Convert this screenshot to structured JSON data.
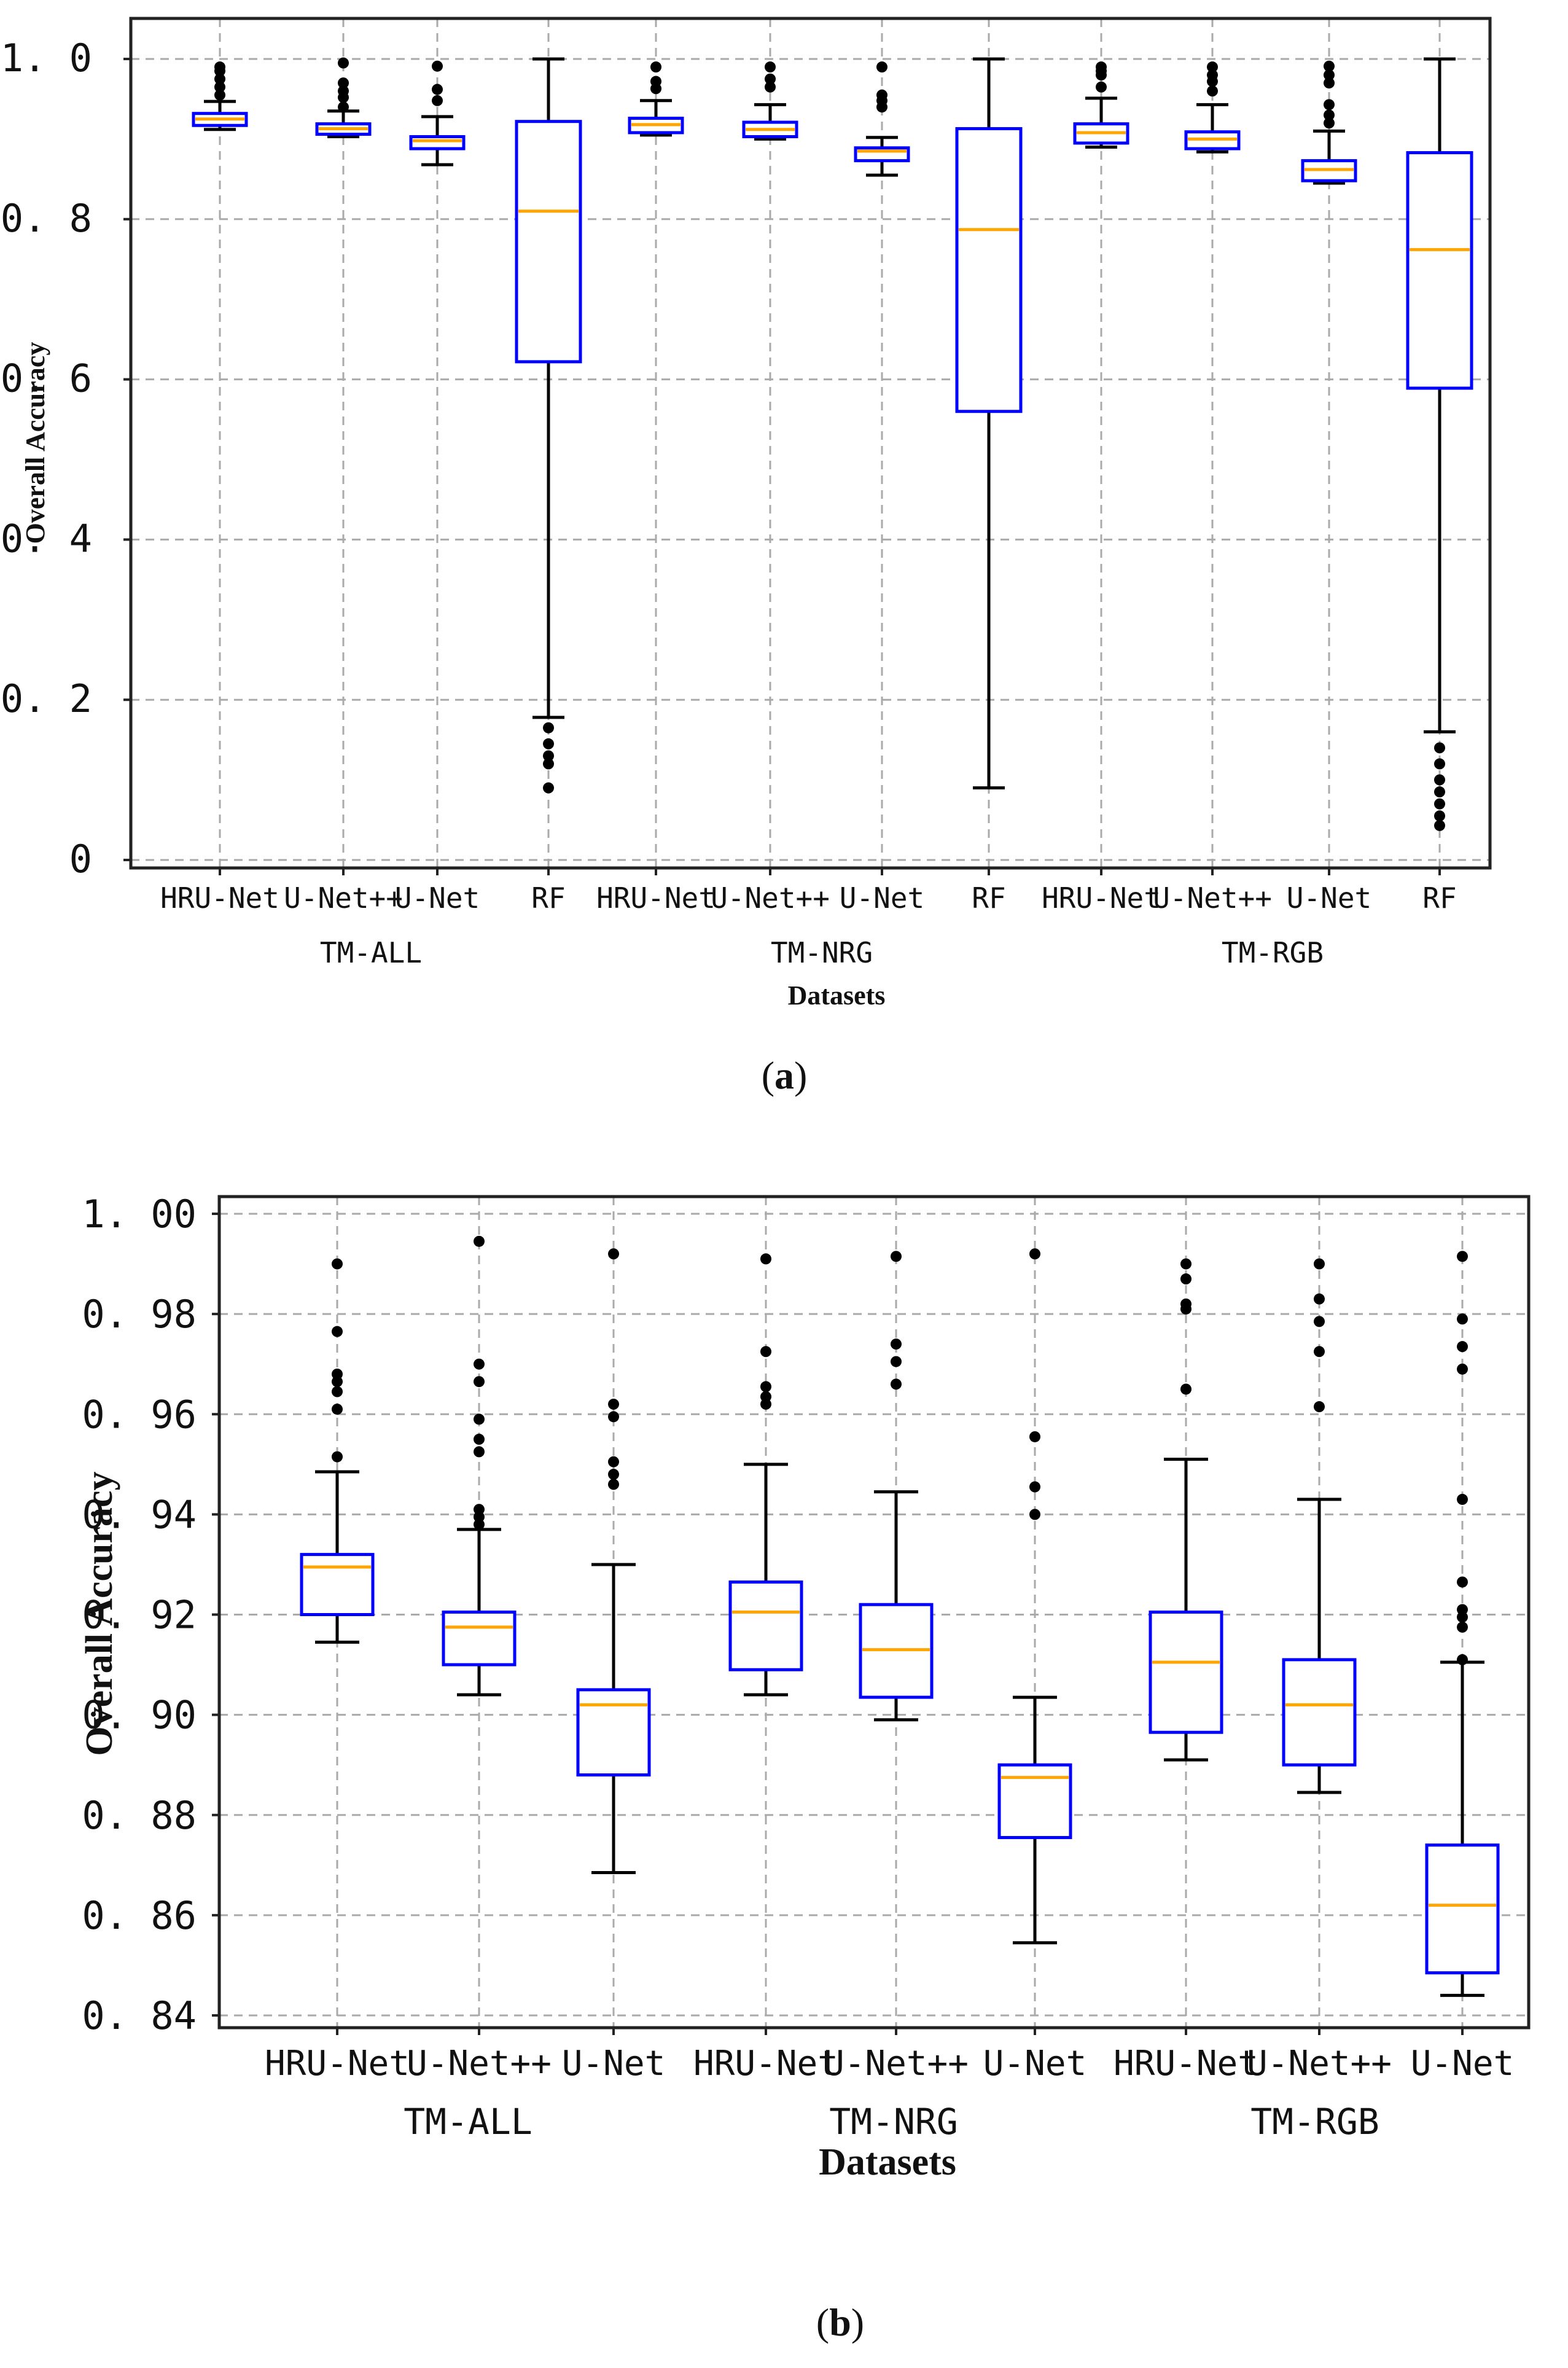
{
  "chart_data": [
    {
      "type": "box",
      "panel": "a",
      "caption_letter": "a",
      "xlabel": "Datasets",
      "ylabel": "Overall Accuracy",
      "ylim": [
        0,
        1.05
      ],
      "yticks": [
        1.0,
        0.8,
        0.6,
        0.4,
        0.2,
        0
      ],
      "ytick_labels": [
        "1. 0",
        "0. 8",
        "0. 6",
        "0. 4",
        "0. 2",
        "0"
      ],
      "grid": true,
      "colors": {
        "box": "#0000ff",
        "median": "#ffa500",
        "whisker": "#000000",
        "outlier": "#000000",
        "grid": "#aaaaaa"
      },
      "groups": [
        {
          "name": "TM-ALL",
          "models": [
            {
              "label": "HRU-Net",
              "q1": 0.917,
              "median": 0.925,
              "q3": 0.932,
              "wlow": 0.912,
              "whigh": 0.947,
              "outliers": [
                0.955,
                0.965,
                0.975,
                0.985,
                0.99
              ]
            },
            {
              "label": "U-Net++",
              "q1": 0.906,
              "median": 0.913,
              "q3": 0.919,
              "wlow": 0.903,
              "whigh": 0.935,
              "outliers": [
                0.94,
                0.952,
                0.96,
                0.97,
                0.995
              ]
            },
            {
              "label": "U-Net",
              "q1": 0.888,
              "median": 0.898,
              "q3": 0.903,
              "wlow": 0.868,
              "whigh": 0.928,
              "outliers": [
                0.948,
                0.962,
                0.991
              ]
            },
            {
              "label": "RF",
              "q1": 0.622,
              "median": 0.81,
              "q3": 0.922,
              "wlow": 0.178,
              "whigh": 1.0,
              "outliers": [
                0.165,
                0.145,
                0.13,
                0.12,
                0.09
              ]
            }
          ]
        },
        {
          "name": "TM-NRG",
          "models": [
            {
              "label": "HRU-Net",
              "q1": 0.908,
              "median": 0.918,
              "q3": 0.926,
              "wlow": 0.905,
              "whigh": 0.948,
              "outliers": [
                0.963,
                0.972,
                0.99
              ]
            },
            {
              "label": "U-Net++",
              "q1": 0.903,
              "median": 0.912,
              "q3": 0.921,
              "wlow": 0.9,
              "whigh": 0.943,
              "outliers": [
                0.965,
                0.975,
                0.99
              ]
            },
            {
              "label": "U-Net",
              "q1": 0.873,
              "median": 0.885,
              "q3": 0.889,
              "wlow": 0.855,
              "whigh": 0.902,
              "outliers": [
                0.94,
                0.948,
                0.955,
                0.99
              ]
            },
            {
              "label": "RF",
              "q1": 0.56,
              "median": 0.787,
              "q3": 0.913,
              "wlow": 0.09,
              "whigh": 1.0,
              "outliers": []
            }
          ]
        },
        {
          "name": "TM-RGB",
          "models": [
            {
              "label": "HRU-Net",
              "q1": 0.895,
              "median": 0.908,
              "q3": 0.919,
              "wlow": 0.89,
              "whigh": 0.951,
              "outliers": [
                0.965,
                0.98,
                0.985,
                0.99
              ]
            },
            {
              "label": "U-Net++",
              "q1": 0.888,
              "median": 0.9,
              "q3": 0.909,
              "wlow": 0.884,
              "whigh": 0.943,
              "outliers": [
                0.96,
                0.972,
                0.98,
                0.99
              ]
            },
            {
              "label": "U-Net",
              "q1": 0.848,
              "median": 0.862,
              "q3": 0.873,
              "wlow": 0.845,
              "whigh": 0.91,
              "outliers": [
                0.92,
                0.93,
                0.943,
                0.97,
                0.98,
                0.991
              ]
            },
            {
              "label": "RF",
              "q1": 0.589,
              "median": 0.762,
              "q3": 0.883,
              "wlow": 0.16,
              "whigh": 1.0,
              "outliers": [
                0.14,
                0.12,
                0.1,
                0.085,
                0.07,
                0.055,
                0.043
              ]
            }
          ]
        }
      ]
    },
    {
      "type": "box",
      "panel": "b",
      "caption_letter": "b",
      "xlabel": "Datasets",
      "ylabel": "Overall Accuracy",
      "ylim": [
        0.836,
        1.004
      ],
      "yticks": [
        1.0,
        0.98,
        0.96,
        0.94,
        0.92,
        0.9,
        0.88,
        0.86,
        0.84
      ],
      "ytick_labels": [
        "1. 00",
        "0. 98",
        "0. 96",
        "0. 94",
        "0. 92",
        "0. 90",
        "0. 88",
        "0. 86",
        "0. 84"
      ],
      "grid": true,
      "colors": {
        "box": "#0000ff",
        "median": "#ffa500",
        "whisker": "#000000",
        "outlier": "#000000",
        "grid": "#aaaaaa"
      },
      "groups": [
        {
          "name": "TM-ALL",
          "models": [
            {
              "label": "HRU-Net",
              "q1": 0.92,
              "median": 0.9295,
              "q3": 0.932,
              "wlow": 0.9145,
              "whigh": 0.9485,
              "outliers": [
                0.9515,
                0.961,
                0.9645,
                0.9665,
                0.968,
                0.9765,
                0.99
              ]
            },
            {
              "label": "U-Net++",
              "q1": 0.91,
              "median": 0.9175,
              "q3": 0.9205,
              "wlow": 0.904,
              "whigh": 0.937,
              "outliers": [
                0.938,
                0.9395,
                0.941,
                0.9525,
                0.955,
                0.959,
                0.9665,
                0.97,
                0.9945
              ]
            },
            {
              "label": "U-Net",
              "q1": 0.888,
              "median": 0.902,
              "q3": 0.905,
              "wlow": 0.8685,
              "whigh": 0.93,
              "outliers": [
                0.946,
                0.948,
                0.9505,
                0.9595,
                0.962,
                0.992
              ]
            }
          ]
        },
        {
          "name": "TM-NRG",
          "models": [
            {
              "label": "HRU-Net",
              "q1": 0.909,
              "median": 0.9205,
              "q3": 0.9265,
              "wlow": 0.904,
              "whigh": 0.95,
              "outliers": [
                0.962,
                0.9635,
                0.9655,
                0.9725,
                0.991
              ]
            },
            {
              "label": "U-Net++",
              "q1": 0.9035,
              "median": 0.913,
              "q3": 0.922,
              "wlow": 0.899,
              "whigh": 0.9445,
              "outliers": [
                0.966,
                0.9705,
                0.974,
                0.9915
              ]
            },
            {
              "label": "U-Net",
              "q1": 0.8755,
              "median": 0.8875,
              "q3": 0.89,
              "wlow": 0.8545,
              "whigh": 0.9035,
              "outliers": [
                0.94,
                0.9455,
                0.9555,
                0.992
              ]
            }
          ]
        },
        {
          "name": "TM-RGB",
          "models": [
            {
              "label": "HRU-Net",
              "q1": 0.8965,
              "median": 0.9105,
              "q3": 0.9205,
              "wlow": 0.891,
              "whigh": 0.951,
              "outliers": [
                0.965,
                0.981,
                0.982,
                0.987,
                0.99
              ]
            },
            {
              "label": "U-Net++",
              "q1": 0.89,
              "median": 0.902,
              "q3": 0.911,
              "wlow": 0.8845,
              "whigh": 0.943,
              "outliers": [
                0.9615,
                0.9725,
                0.9785,
                0.983,
                0.99
              ]
            },
            {
              "label": "U-Net",
              "q1": 0.8485,
              "median": 0.862,
              "q3": 0.874,
              "wlow": 0.844,
              "whigh": 0.9105,
              "outliers": [
                0.911,
                0.9175,
                0.9195,
                0.921,
                0.9265,
                0.943,
                0.969,
                0.9735,
                0.979,
                0.9915
              ]
            }
          ]
        }
      ]
    }
  ]
}
